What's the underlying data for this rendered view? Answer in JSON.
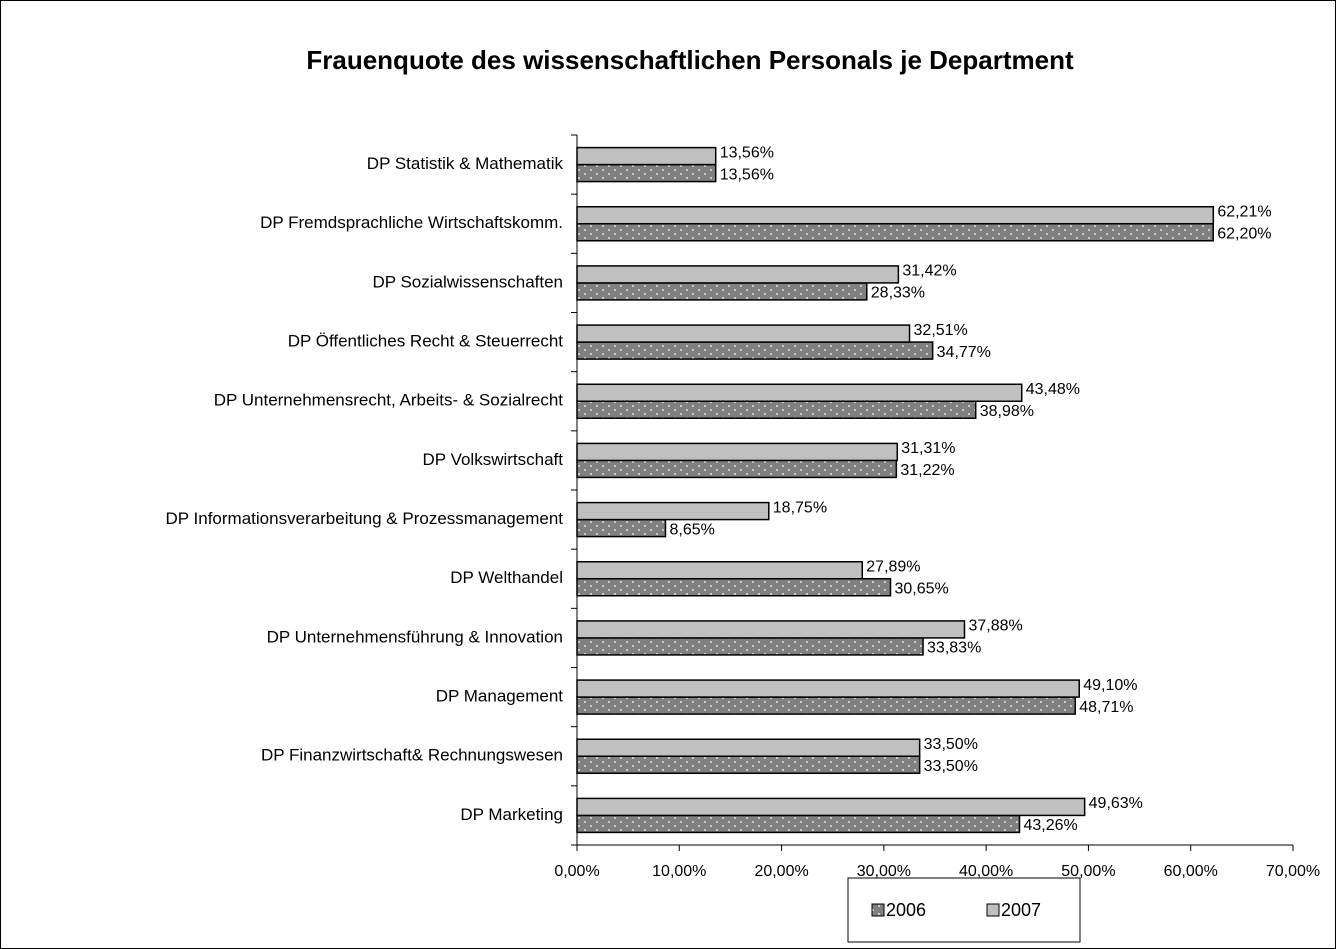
{
  "chart_data": {
    "type": "bar",
    "orientation": "horizontal",
    "title": "Frauenquote des wissenschaftlichen Personals je Department",
    "categories": [
      "DP Statistik & Mathematik",
      "DP Fremdsprachliche Wirtschaftskomm.",
      "DP Sozialwissenschaften",
      "DP Öffentliches Recht & Steuerrecht",
      "DP Unternehmensrecht, Arbeits- & Sozialrecht",
      "DP Volkswirtschaft",
      "DP Informationsverarbeitung & Prozessmanagement",
      "DP Welthandel",
      "DP Unternehmensführung & Innovation",
      "DP Management",
      "DP Finanzwirtschaft& Rechnungswesen",
      "DP Marketing"
    ],
    "series": [
      {
        "name": "2006",
        "color": "#808080",
        "pattern": "dots",
        "values": [
          13.56,
          62.2,
          28.33,
          34.77,
          38.98,
          31.22,
          8.65,
          30.65,
          33.83,
          48.71,
          33.5,
          43.26
        ],
        "value_labels": [
          "13,56%",
          "62,20%",
          "28,33%",
          "34,77%",
          "38,98%",
          "31,22%",
          "8,65%",
          "30,65%",
          "33,83%",
          "48,71%",
          "33,50%",
          "43,26%"
        ]
      },
      {
        "name": "2007",
        "color": "#c0c0c0",
        "values": [
          13.56,
          62.21,
          31.42,
          32.51,
          43.48,
          31.31,
          18.75,
          27.89,
          37.88,
          49.1,
          33.5,
          49.63
        ],
        "value_labels": [
          "13,56%",
          "62,21%",
          "31,42%",
          "32,51%",
          "43,48%",
          "31,31%",
          "18,75%",
          "27,89%",
          "37,88%",
          "49,10%",
          "33,50%",
          "49,63%"
        ]
      }
    ],
    "xlim": [
      0,
      70
    ],
    "xticks": [
      {
        "value": 0,
        "label": "0,00%"
      },
      {
        "value": 10,
        "label": "10,00%"
      },
      {
        "value": 20,
        "label": "20,00%"
      },
      {
        "value": 30,
        "label": "30,00%"
      },
      {
        "value": 40,
        "label": "40,00%"
      },
      {
        "value": 50,
        "label": "50,00%"
      },
      {
        "value": 60,
        "label": "60,00%"
      },
      {
        "value": 70,
        "label": "70,00%"
      }
    ],
    "legend": "bottom"
  }
}
